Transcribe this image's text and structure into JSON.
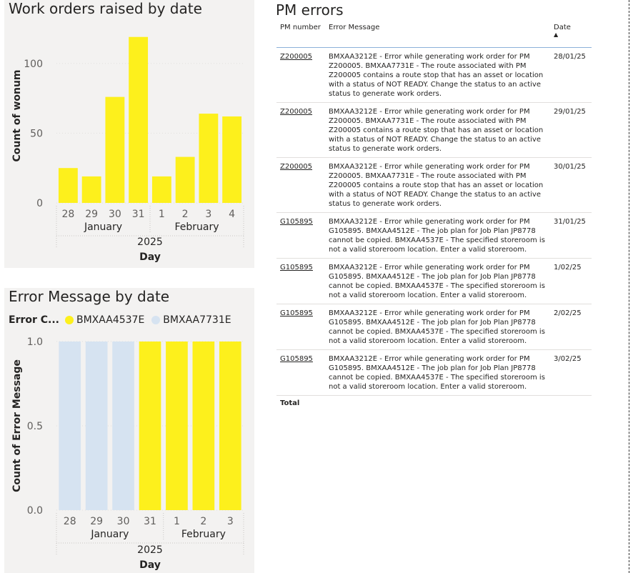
{
  "work_orders_chart": {
    "title": "Work orders raised by date",
    "chart_data": {
      "type": "bar",
      "categories": [
        "28",
        "29",
        "30",
        "31",
        "1",
        "2",
        "3",
        "4"
      ],
      "values": [
        25,
        19,
        76,
        119,
        19,
        33,
        64,
        62
      ],
      "ylabel": "Count of wonum",
      "xlabel": "Day",
      "ylim": [
        0,
        125
      ],
      "yticks": [
        "0",
        "50",
        "100"
      ],
      "month_labels": [
        "January",
        "February"
      ],
      "year_label": "2025",
      "color": "#fdf01c"
    }
  },
  "error_message_chart": {
    "title": "Error Message by date",
    "legend": {
      "title": "Error C...",
      "entries": [
        {
          "name": "BMXAA4537E",
          "color": "#fdf01c"
        },
        {
          "name": "BMXAA7731E",
          "color": "#d6e3f1"
        }
      ]
    },
    "chart_data": {
      "type": "bar",
      "categories": [
        "28",
        "29",
        "30",
        "31",
        "1",
        "2",
        "3"
      ],
      "series": [
        {
          "name": "BMXAA7731E",
          "values": [
            1,
            1,
            1,
            0,
            0,
            0,
            0
          ]
        },
        {
          "name": "BMXAA4537E",
          "values": [
            0,
            0,
            0,
            1,
            1,
            1,
            1
          ]
        }
      ],
      "ylabel": "Count of Error Message",
      "xlabel": "Day",
      "ylim": [
        0,
        1
      ],
      "yticks": [
        "0.0",
        "0.5",
        "1.0"
      ],
      "month_labels": [
        "January",
        "February"
      ],
      "year_label": "2025"
    }
  },
  "pm_errors": {
    "title": "PM errors",
    "columns": [
      "PM number",
      "Error Message",
      "Date"
    ],
    "rows": [
      {
        "pm": "Z200005",
        "message": "BMXAA3212E - Error while generating work order for PM Z200005. BMXAA7731E - The route associated with PM Z200005 contains a route stop that has an asset or location with a status of NOT READY. Change the status to an active status to generate work orders.",
        "date": "28/01/25"
      },
      {
        "pm": "Z200005",
        "message": "BMXAA3212E - Error while generating work order for PM Z200005. BMXAA7731E - The route associated with PM Z200005 contains a route stop that has an asset or location with a status of NOT READY. Change the status to an active status to generate work orders.",
        "date": "29/01/25"
      },
      {
        "pm": "Z200005",
        "message": "BMXAA3212E - Error while generating work order for PM Z200005. BMXAA7731E - The route associated with PM Z200005 contains a route stop that has an asset or location with a status of NOT READY. Change the status to an active status to generate work orders.",
        "date": "30/01/25"
      },
      {
        "pm": "G105895",
        "message": "BMXAA3212E - Error while generating work order for PM G105895. BMXAA4512E - The job plan for Job Plan JP8778 cannot be copied. BMXAA4537E - The specified storeroom is not a valid storeroom location. Enter a valid storeroom.",
        "date": "31/01/25"
      },
      {
        "pm": "G105895",
        "message": "BMXAA3212E - Error while generating work order for PM G105895. BMXAA4512E - The job plan for Job Plan JP8778 cannot be copied. BMXAA4537E - The specified storeroom is not a valid storeroom location. Enter a valid storeroom.",
        "date": "1/02/25"
      },
      {
        "pm": "G105895",
        "message": "BMXAA3212E - Error while generating work order for PM G105895. BMXAA4512E - The job plan for Job Plan JP8778 cannot be copied. BMXAA4537E - The specified storeroom is not a valid storeroom location. Enter a valid storeroom.",
        "date": "2/02/25"
      },
      {
        "pm": "G105895",
        "message": "BMXAA3212E - Error while generating work order for PM G105895. BMXAA4512E - The job plan for Job Plan JP8778 cannot be copied. BMXAA4537E - The specified storeroom is not a valid storeroom location. Enter a valid storeroom.",
        "date": "3/02/25"
      }
    ],
    "total_label": "Total"
  }
}
